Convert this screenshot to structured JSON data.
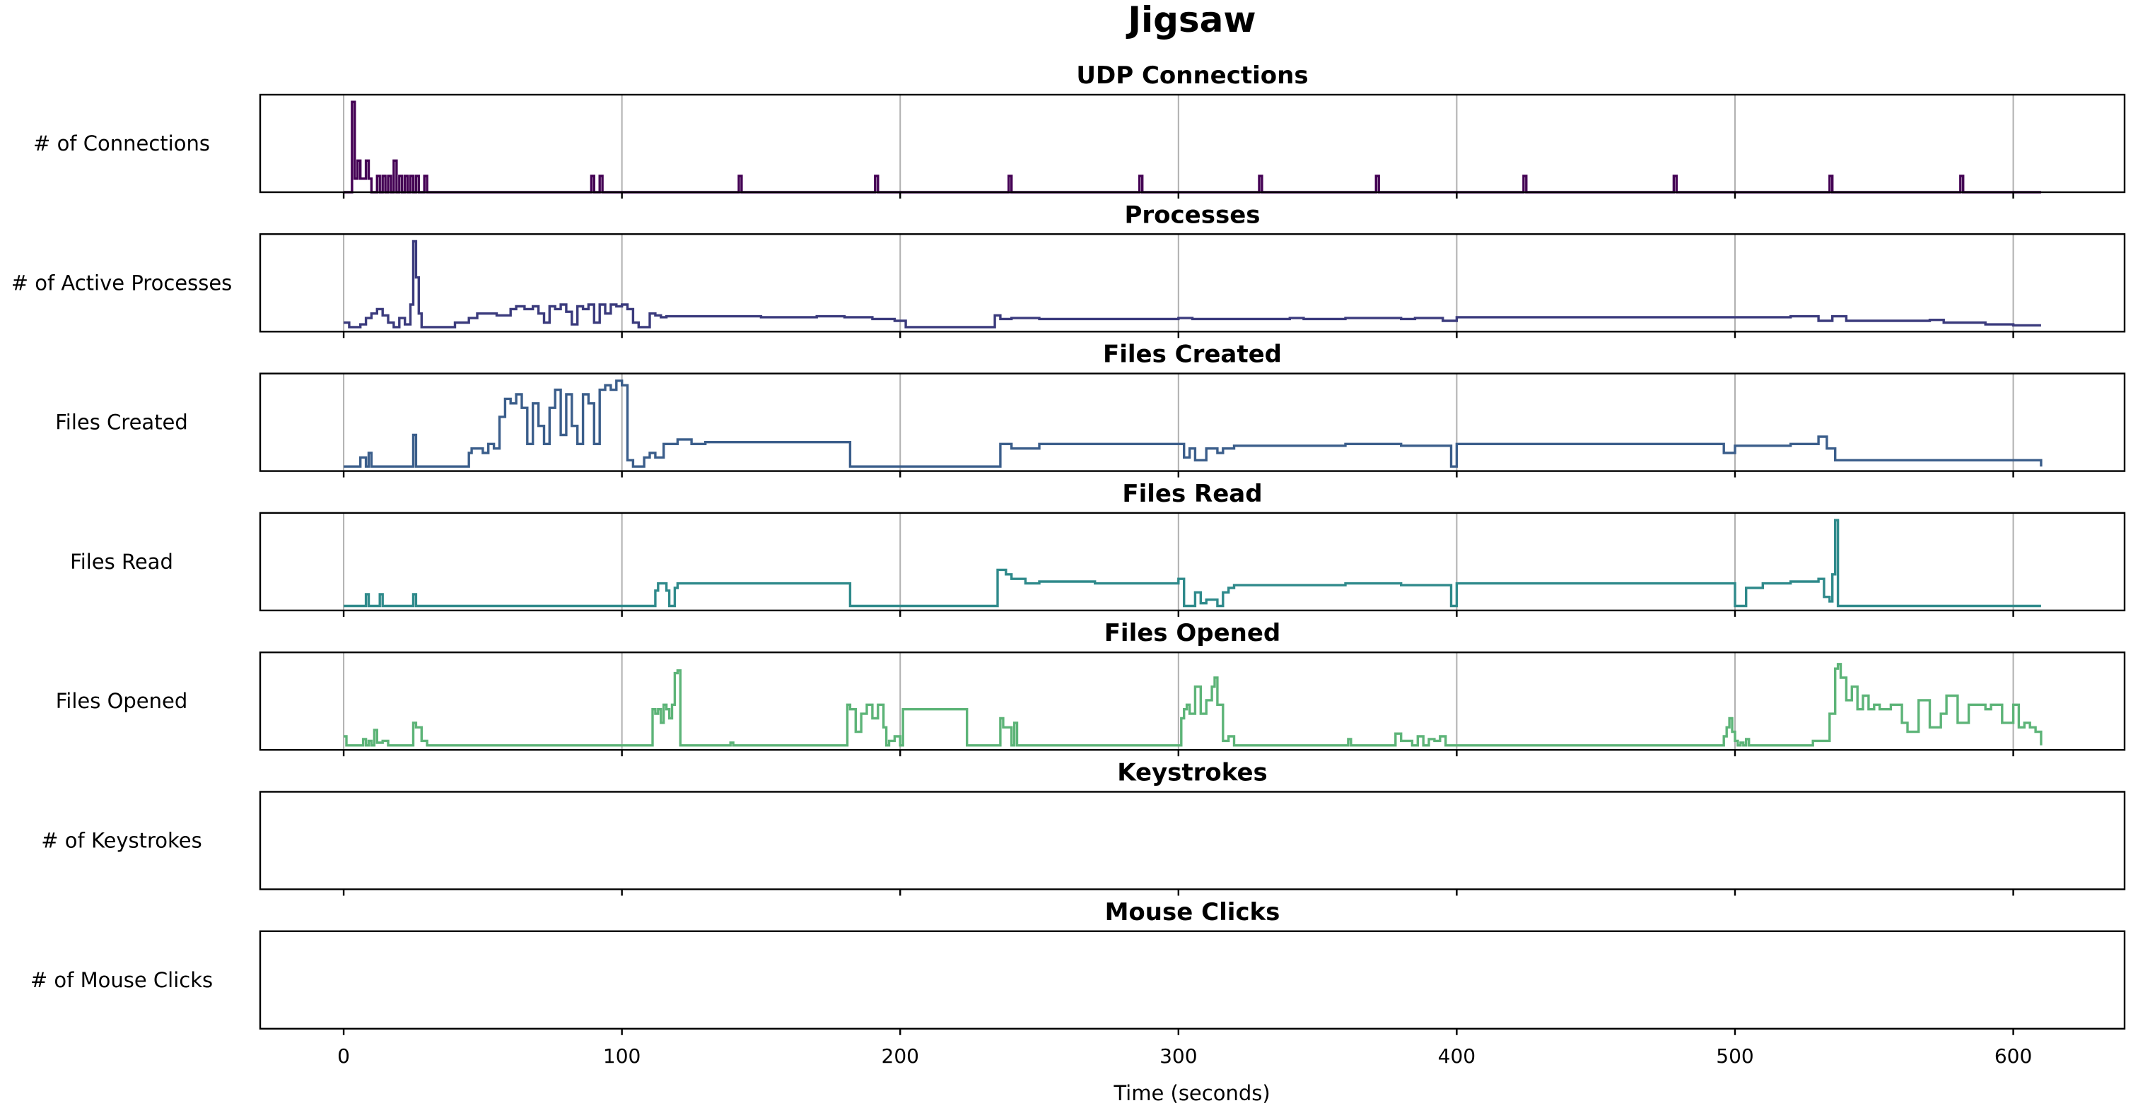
{
  "chart_data": {
    "type": "line",
    "title": "Jigsaw",
    "xlabel": "Time (seconds)",
    "x_ticks": [
      0,
      100,
      200,
      300,
      400,
      500,
      600
    ],
    "x_range": [
      -30,
      640
    ],
    "grid": true,
    "step": true,
    "panels": [
      {
        "title": "UDP Connections",
        "ylabel": "# of Connections",
        "color": "#440154",
        "ylim": [
          0,
          1.08
        ],
        "x": [
          0,
          2,
          3,
          4,
          5,
          6,
          8,
          9,
          10,
          11,
          12,
          13,
          14,
          15,
          16,
          17,
          18,
          19,
          20,
          21,
          22,
          23,
          24,
          25,
          26,
          27,
          28,
          29,
          30,
          88,
          89,
          90,
          91,
          92,
          93,
          94,
          141,
          142,
          143,
          190,
          191,
          192,
          238,
          239,
          240,
          285,
          286,
          287,
          328,
          329,
          330,
          370,
          371,
          372,
          423,
          424,
          425,
          477,
          478,
          479,
          533,
          534,
          535,
          580,
          581,
          582,
          610
        ],
        "y": [
          0,
          0,
          1,
          0.15,
          0.35,
          0.15,
          0.35,
          0.15,
          0,
          0,
          0.18,
          0,
          0.18,
          0,
          0.18,
          0,
          0.35,
          0,
          0.18,
          0,
          0.18,
          0,
          0.18,
          0,
          0.18,
          0,
          0,
          0.18,
          0,
          0,
          0.18,
          0,
          0,
          0.18,
          0,
          0,
          0,
          0.18,
          0,
          0,
          0.18,
          0,
          0,
          0.18,
          0,
          0,
          0.18,
          0,
          0,
          0.18,
          0,
          0,
          0.18,
          0,
          0,
          0.18,
          0,
          0,
          0.18,
          0,
          0,
          0.18,
          0,
          0,
          0.18,
          0,
          0
        ]
      },
      {
        "title": "Processes",
        "ylabel": "# of Active Processes",
        "color": "#3b3b7d",
        "ylim": [
          0,
          1.08
        ],
        "x": [
          0,
          2,
          6,
          8,
          10,
          12,
          14,
          16,
          18,
          20,
          22,
          24,
          25,
          26,
          27,
          28,
          30,
          40,
          45,
          48,
          55,
          60,
          62,
          65,
          68,
          70,
          72,
          74,
          76,
          78,
          80,
          82,
          84,
          86,
          88,
          90,
          92,
          94,
          96,
          98,
          100,
          102,
          104,
          106,
          110,
          112,
          114,
          116,
          120,
          140,
          150,
          170,
          180,
          190,
          198,
          202,
          234,
          236,
          240,
          250,
          270,
          290,
          300,
          305,
          320,
          340,
          345,
          360,
          380,
          385,
          395,
          400,
          430,
          460,
          480,
          500,
          520,
          530,
          535,
          540,
          550,
          570,
          575,
          590,
          600,
          610
        ],
        "y": [
          0.1,
          0.05,
          0.08,
          0.15,
          0.2,
          0.25,
          0.18,
          0.1,
          0.05,
          0.15,
          0.08,
          0.3,
          1,
          0.6,
          0.2,
          0.05,
          0.05,
          0.1,
          0.15,
          0.2,
          0.18,
          0.25,
          0.28,
          0.25,
          0.28,
          0.2,
          0.1,
          0.28,
          0.25,
          0.3,
          0.22,
          0.08,
          0.28,
          0.25,
          0.3,
          0.1,
          0.3,
          0.2,
          0.3,
          0.28,
          0.3,
          0.25,
          0.1,
          0.05,
          0.2,
          0.18,
          0.16,
          0.17,
          0.17,
          0.17,
          0.16,
          0.17,
          0.16,
          0.14,
          0.12,
          0.05,
          0.18,
          0.14,
          0.15,
          0.14,
          0.14,
          0.14,
          0.15,
          0.14,
          0.14,
          0.15,
          0.14,
          0.15,
          0.14,
          0.15,
          0.12,
          0.16,
          0.16,
          0.16,
          0.16,
          0.16,
          0.17,
          0.12,
          0.17,
          0.12,
          0.12,
          0.13,
          0.1,
          0.08,
          0.07,
          0.07
        ]
      },
      {
        "title": "Files Created",
        "ylabel": "Files Created",
        "color": "#3b5e8b",
        "ylim": [
          0,
          1.08
        ],
        "x": [
          0,
          5,
          6,
          8,
          9,
          10,
          24,
          25,
          26,
          27,
          30,
          45,
          46,
          50,
          52,
          54,
          56,
          58,
          60,
          62,
          64,
          66,
          68,
          70,
          72,
          74,
          76,
          78,
          80,
          82,
          84,
          86,
          88,
          90,
          92,
          94,
          96,
          98,
          100,
          102,
          104,
          108,
          110,
          112,
          115,
          120,
          125,
          130,
          150,
          180,
          182,
          234,
          236,
          240,
          250,
          270,
          290,
          300,
          302,
          304,
          306,
          310,
          314,
          316,
          320,
          340,
          360,
          380,
          395,
          398,
          400,
          420,
          460,
          490,
          496,
          500,
          520,
          530,
          533,
          536,
          610
        ],
        "y": [
          0.05,
          0.05,
          0.15,
          0.05,
          0.2,
          0.05,
          0.05,
          0.4,
          0.05,
          0.05,
          0.05,
          0.2,
          0.25,
          0.2,
          0.3,
          0.25,
          0.6,
          0.8,
          0.75,
          0.85,
          0.7,
          0.3,
          0.75,
          0.5,
          0.3,
          0.7,
          0.9,
          0.4,
          0.85,
          0.5,
          0.3,
          0.85,
          0.75,
          0.3,
          0.9,
          0.95,
          0.9,
          1,
          0.95,
          0.12,
          0.05,
          0.15,
          0.2,
          0.15,
          0.3,
          0.35,
          0.3,
          0.32,
          0.32,
          0.32,
          0.05,
          0.05,
          0.3,
          0.25,
          0.3,
          0.3,
          0.3,
          0.3,
          0.15,
          0.25,
          0.12,
          0.25,
          0.2,
          0.25,
          0.28,
          0.28,
          0.3,
          0.28,
          0.28,
          0.05,
          0.3,
          0.3,
          0.3,
          0.3,
          0.2,
          0.28,
          0.3,
          0.38,
          0.25,
          0.12,
          0.05
        ]
      },
      {
        "title": "Files Read",
        "ylabel": "Files Read",
        "color": "#2f8a8b",
        "ylim": [
          0,
          1.08
        ],
        "x": [
          0,
          7,
          8,
          9,
          12,
          13,
          14,
          24,
          25,
          26,
          27,
          110,
          112,
          113,
          116,
          117,
          119,
          120,
          130,
          150,
          180,
          182,
          234,
          235,
          238,
          240,
          245,
          250,
          270,
          290,
          298,
          300,
          302,
          306,
          308,
          310,
          314,
          316,
          318,
          320,
          340,
          360,
          380,
          395,
          398,
          400,
          420,
          460,
          497,
          500,
          504,
          510,
          520,
          530,
          532,
          534,
          535,
          536,
          537,
          540,
          610
        ],
        "y": [
          0.05,
          0.05,
          0.18,
          0.05,
          0.05,
          0.18,
          0.05,
          0.05,
          0.18,
          0.05,
          0.05,
          0.05,
          0.22,
          0.3,
          0.22,
          0.05,
          0.25,
          0.3,
          0.3,
          0.3,
          0.3,
          0.05,
          0.05,
          0.45,
          0.4,
          0.35,
          0.3,
          0.32,
          0.3,
          0.3,
          0.3,
          0.35,
          0.05,
          0.2,
          0.08,
          0.12,
          0.05,
          0.2,
          0.25,
          0.28,
          0.28,
          0.3,
          0.28,
          0.28,
          0.05,
          0.3,
          0.3,
          0.3,
          0.3,
          0.05,
          0.25,
          0.3,
          0.32,
          0.35,
          0.15,
          0.1,
          0.4,
          1,
          0.05,
          0.05,
          0.05
        ]
      },
      {
        "title": "Files Opened",
        "ylabel": "Files Opened",
        "color": "#5db478",
        "ylim": [
          0,
          1.08
        ],
        "x": [
          0,
          1,
          6,
          7,
          8,
          9,
          10,
          11,
          12,
          14,
          16,
          25,
          26,
          28,
          30,
          110,
          111,
          112,
          113,
          114,
          115,
          116,
          117,
          118,
          119,
          120,
          121,
          138,
          139,
          140,
          180,
          181,
          182,
          184,
          186,
          188,
          190,
          192,
          194,
          195,
          196,
          198,
          200,
          201,
          224,
          235,
          236,
          237,
          240,
          241,
          242,
          300,
          301,
          302,
          303,
          304,
          306,
          308,
          310,
          312,
          313,
          314,
          316,
          318,
          320,
          360,
          361,
          362,
          376,
          378,
          380,
          384,
          386,
          388,
          390,
          392,
          394,
          396,
          495,
          496,
          497,
          498,
          499,
          500,
          501,
          502,
          503,
          504,
          505,
          526,
          528,
          534,
          536,
          537,
          538,
          540,
          542,
          544,
          546,
          548,
          550,
          552,
          554,
          556,
          560,
          562,
          566,
          570,
          574,
          576,
          580,
          584,
          590,
          592,
          596,
          600,
          602,
          604,
          606,
          608,
          610
        ],
        "y": [
          0.15,
          0.05,
          0.05,
          0.12,
          0.05,
          0.1,
          0.05,
          0.22,
          0.08,
          0.1,
          0.05,
          0.3,
          0.25,
          0.1,
          0.05,
          0.05,
          0.45,
          0.4,
          0.45,
          0.3,
          0.5,
          0.45,
          0.35,
          0.5,
          0.85,
          0.88,
          0.05,
          0.05,
          0.08,
          0.05,
          0.05,
          0.5,
          0.45,
          0.2,
          0.4,
          0.5,
          0.35,
          0.5,
          0.25,
          0.05,
          0.1,
          0.15,
          0.05,
          0.45,
          0.05,
          0.05,
          0.35,
          0.25,
          0.05,
          0.3,
          0.05,
          0.05,
          0.35,
          0.45,
          0.5,
          0.4,
          0.7,
          0.4,
          0.55,
          0.7,
          0.8,
          0.5,
          0.1,
          0.15,
          0.05,
          0.05,
          0.12,
          0.05,
          0.05,
          0.18,
          0.1,
          0.05,
          0.15,
          0.05,
          0.12,
          0.1,
          0.15,
          0.05,
          0.05,
          0.15,
          0.25,
          0.35,
          0.2,
          0.1,
          0.05,
          0.08,
          0.05,
          0.12,
          0.05,
          0.05,
          0.1,
          0.4,
          0.9,
          0.95,
          0.8,
          0.55,
          0.7,
          0.45,
          0.6,
          0.45,
          0.5,
          0.45,
          0.45,
          0.5,
          0.3,
          0.2,
          0.55,
          0.25,
          0.4,
          0.6,
          0.3,
          0.5,
          0.45,
          0.5,
          0.3,
          0.5,
          0.25,
          0.3,
          0.25,
          0.2,
          0.05
        ]
      },
      {
        "title": "Keystrokes",
        "ylabel": "# of Keystrokes",
        "color": "#000000",
        "ylim": [
          0,
          1.08
        ],
        "x": [],
        "y": []
      },
      {
        "title": "Mouse Clicks",
        "ylabel": "# of Mouse Clicks",
        "color": "#000000",
        "ylim": [
          0,
          1.08
        ],
        "x": [],
        "y": []
      }
    ]
  }
}
